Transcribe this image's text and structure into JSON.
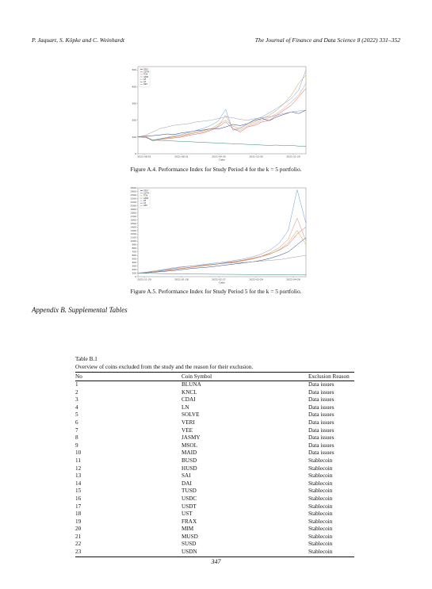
{
  "header": {
    "authors": "P. Jaquart, S. Köpke and C. Weinhardt",
    "journal": "The Journal of Finance and Data Science 8 (2022) 331–352"
  },
  "figures": [
    {
      "caption": "Figure A.4.  Performance Index for Study Period 4 for the k = 5 portfolio.",
      "chart_data": {
        "type": "line",
        "xlabel": "Date",
        "x_ticks": [
          "2021-08-01",
          "2021-08-31",
          "2021-09-30",
          "2021-10-30",
          "2021-11-29"
        ],
        "y_ticks": [
          0,
          100,
          200,
          300,
          400,
          500
        ],
        "ylim": [
          0,
          520
        ],
        "legend_position": "top-left",
        "colors": [
          "#1f3a93",
          "#d9534f",
          "#c9a227",
          "#6a9bd8",
          "#d98880",
          "#2e8b7a",
          "#9a9aa8"
        ],
        "series": [
          {
            "name": "GRU",
            "values": [
              102,
              105,
              108,
              112,
              118,
              115,
              125,
              130,
              138,
              142,
              150,
              148,
              160,
              175,
              168,
              180,
              200,
              210,
              198,
              220,
              235,
              250,
              240,
              260
            ]
          },
          {
            "name": "LSTM",
            "values": [
              100,
              102,
              78,
              85,
              90,
              95,
              100,
              110,
              118,
              125,
              140,
              160,
              190,
              150,
              130,
              160,
              170,
              190,
              200,
              230,
              260,
              290,
              340,
              390
            ]
          },
          {
            "name": "TCN",
            "values": [
              100,
              104,
              82,
              88,
              96,
              102,
              108,
              120,
              130,
              138,
              150,
              175,
              200,
              165,
              150,
              175,
              190,
              210,
              230,
              260,
              300,
              350,
              420,
              470
            ]
          },
          {
            "name": "GBM",
            "values": [
              100,
              105,
              80,
              90,
              98,
              108,
              115,
              128,
              140,
              152,
              170,
              195,
              265,
              140,
              155,
              180,
              205,
              220,
              245,
              270,
              300,
              330,
              380,
              500
            ]
          },
          {
            "name": "RF",
            "values": [
              100,
              103,
              80,
              86,
              94,
              100,
              106,
              116,
              126,
              132,
              145,
              165,
              230,
              150,
              140,
              165,
              180,
              200,
              215,
              240,
              270,
              310,
              350,
              420
            ]
          },
          {
            "name": "LR",
            "values": [
              100,
              98,
              82,
              80,
              78,
              76,
              74,
              72,
              70,
              68,
              66,
              64,
              62,
              60,
              58,
              56,
              54,
              52,
              50,
              52,
              48,
              50,
              46,
              44
            ]
          },
          {
            "name": "RRF",
            "values": [
              100,
              110,
              130,
              150,
              160,
              170,
              175,
              180,
              190,
              195,
              200,
              210,
              220,
              215,
              205,
              200,
              210,
              215,
              220,
              230,
              240,
              250,
              255,
              260
            ]
          }
        ]
      }
    },
    {
      "caption": "Figure A.5.  Performance Index for Study Period 5 for the k = 5 portfolio.",
      "chart_data": {
        "type": "line",
        "xlabel": "Date",
        "x_ticks": [
          "2021-11-29",
          "2021-01-28",
          "2022-02-27",
          "2022-03-29",
          "2022-04-28"
        ],
        "y_ticks": [
          0,
          100,
          200,
          300,
          400,
          500,
          600,
          700,
          800,
          900,
          1000,
          1100,
          1200,
          1300,
          1400,
          1500,
          1600,
          1700,
          1800,
          1900,
          2000,
          2100,
          2200,
          2300,
          2400,
          2500
        ],
        "ylim": [
          0,
          2500
        ],
        "legend_position": "top-left",
        "colors": [
          "#1f3a93",
          "#d9534f",
          "#c9a227",
          "#6a9bd8",
          "#d98880",
          "#2e8b7a",
          "#9a9aa8"
        ],
        "series": [
          {
            "name": "GRU",
            "values": [
              100,
              110,
              130,
              150,
              170,
              200,
              230,
              250,
              270,
              300,
              330,
              360,
              390,
              420,
              460,
              520,
              600,
              700,
              900,
              1100
            ]
          },
          {
            "name": "LSTM",
            "values": [
              100,
              120,
              150,
              180,
              210,
              240,
              270,
              300,
              330,
              360,
              400,
              430,
              470,
              520,
              580,
              650,
              750,
              900,
              1200,
              1400
            ]
          },
          {
            "name": "TCN",
            "values": [
              100,
              115,
              140,
              170,
              200,
              230,
              260,
              290,
              320,
              350,
              380,
              410,
              450,
              500,
              560,
              640,
              760,
              950,
              1300,
              900
            ]
          },
          {
            "name": "GBM",
            "values": [
              100,
              120,
              150,
              190,
              230,
              270,
              300,
              330,
              360,
              390,
              420,
              460,
              500,
              560,
              640,
              760,
              950,
              1300,
              2450,
              1500
            ]
          },
          {
            "name": "RF",
            "values": [
              100,
              118,
              145,
              175,
              205,
              235,
              265,
              295,
              330,
              360,
              390,
              420,
              460,
              510,
              580,
              680,
              820,
              1050,
              1650,
              1000
            ]
          },
          {
            "name": "LR",
            "values": [
              100,
              95,
              90,
              85,
              80,
              78,
              75,
              72,
              70,
              68,
              66,
              64,
              62,
              60,
              58,
              56,
              54,
              52,
              50,
              48
            ]
          },
          {
            "name": "RRF",
            "values": [
              100,
              130,
              170,
              210,
              250,
              280,
              300,
              320,
              340,
              360,
              380,
              390,
              400,
              420,
              440,
              460,
              480,
              520,
              560,
              600
            ]
          }
        ]
      }
    }
  ],
  "appendix_heading": "Appendix B.  Supplemental Tables",
  "table": {
    "label": "Table B.1",
    "caption": "Overview of coins excluded from the study and the reason for their exclusion.",
    "headers": [
      "No",
      "Coin Symbol",
      "Exclusion Reason"
    ],
    "rows": [
      [
        "1",
        "BLUNA",
        "Data issues"
      ],
      [
        "2",
        "KNCL",
        "Data issues"
      ],
      [
        "3",
        "CDAI",
        "Data issues"
      ],
      [
        "4",
        "LN",
        "Data issues"
      ],
      [
        "5",
        "SOLVE",
        "Data issues"
      ],
      [
        "6",
        "VERI",
        "Data issues"
      ],
      [
        "7",
        "VEE",
        "Data issues"
      ],
      [
        "8",
        "JASMY",
        "Data issues"
      ],
      [
        "9",
        "MSOL",
        "Data issues"
      ],
      [
        "10",
        "MAID",
        "Data issues"
      ],
      [
        "11",
        "BUSD",
        "Stablecoin"
      ],
      [
        "12",
        "HUSD",
        "Stablecoin"
      ],
      [
        "13",
        "SAI",
        "Stablecoin"
      ],
      [
        "14",
        "DAI",
        "Stablecoin"
      ],
      [
        "15",
        "TUSD",
        "Stablecoin"
      ],
      [
        "16",
        "USDC",
        "Stablecoin"
      ],
      [
        "17",
        "USDT",
        "Stablecoin"
      ],
      [
        "18",
        "UST",
        "Stablecoin"
      ],
      [
        "19",
        "FRAX",
        "Stablecoin"
      ],
      [
        "20",
        "MIM",
        "Stablecoin"
      ],
      [
        "21",
        "MUSD",
        "Stablecoin"
      ],
      [
        "22",
        "SUSD",
        "Stablecoin"
      ],
      [
        "23",
        "USDN",
        "Stablecoin"
      ]
    ]
  },
  "page_number": "347"
}
